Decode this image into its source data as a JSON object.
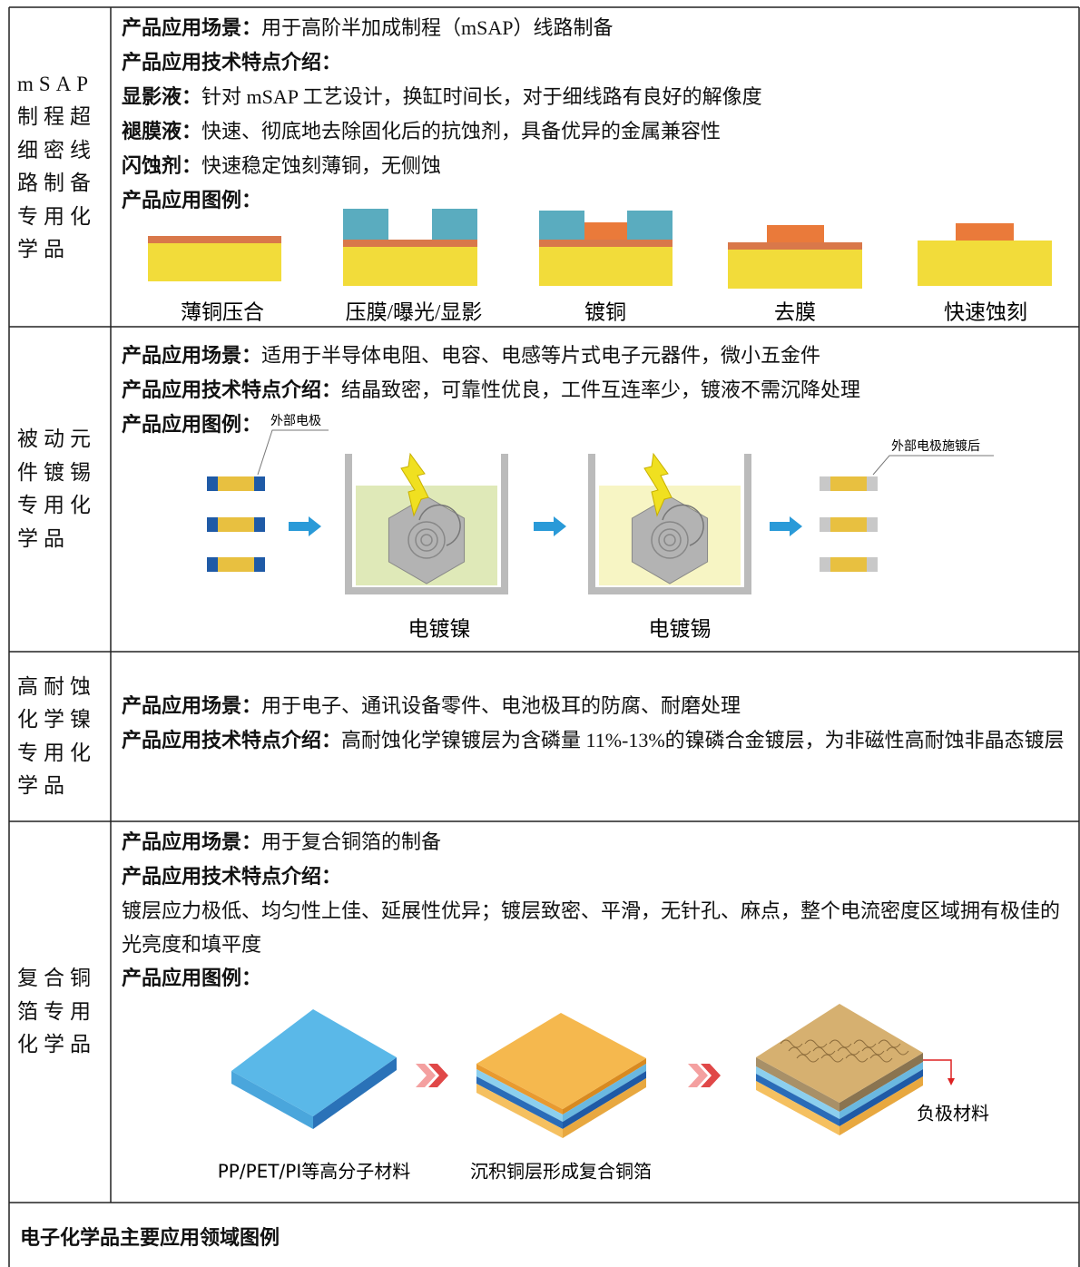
{
  "sections": [
    {
      "category": "mSAP制程超细密线路制备专用化学品",
      "lines": [
        {
          "label": "产品应用场景：",
          "text": "用于高阶半加成制程（mSAP）线路制备"
        },
        {
          "label": "产品应用技术特点介绍："
        },
        {
          "label": "显影液：",
          "text": "针对 mSAP 工艺设计，换缸时间长，对于细线路有良好的解像度"
        },
        {
          "label": "褪膜液：",
          "text": "快速、彻底地去除固化后的抗蚀剂，具备优异的金属兼容性"
        },
        {
          "label": "闪蚀剂：",
          "text": "快速稳定蚀刻薄铜，无侧蚀"
        },
        {
          "label": "产品应用图例："
        }
      ],
      "figure": {
        "captions": [
          "薄铜压合",
          "压膜/曝光/显影",
          "镀铜",
          "去膜",
          "快速蚀刻"
        ]
      }
    },
    {
      "category": "被动元件镀锡专用化学品",
      "lines": [
        {
          "label": "产品应用场景：",
          "text": "适用于半导体电阻、电容、电感等片式电子元器件，微小五金件"
        },
        {
          "label": "产品应用技术特点介绍：",
          "text": "结晶致密，可靠性优良，工件互连率少，镀液不需沉降处理"
        },
        {
          "label": "产品应用图例："
        }
      ],
      "figure": {
        "callouts": [
          "外部电极",
          "外部电极施镀后"
        ],
        "captions": [
          "电镀镍",
          "电镀锡"
        ]
      }
    },
    {
      "category": "高耐蚀化学镍专用化学品",
      "lines": [
        {
          "label": "产品应用场景：",
          "text": "用于电子、通讯设备零件、电池极耳的防腐、耐磨处理"
        },
        {
          "label": "产品应用技术特点介绍：",
          "text": "高耐蚀化学镍镀层为含磷量 11%-13%的镍磷合金镀层，为非磁性高耐蚀非晶态镀层"
        }
      ]
    },
    {
      "category": "复合铜箔专用化学品",
      "lines": [
        {
          "label": "产品应用场景：",
          "text": "用于复合铜箔的制备"
        },
        {
          "label": "产品应用技术特点介绍："
        },
        {
          "text": "镀层应力极低、均匀性上佳、延展性优异；镀层致密、平滑，无针孔、麻点，整个电流密度区域拥有极佳的光亮度和填平度"
        },
        {
          "label": "产品应用图例："
        }
      ],
      "figure": {
        "captions": [
          "PP/PET/PI等高分子材料",
          "沉积铜层形成复合铜箔"
        ],
        "callouts": [
          "负极材料"
        ]
      }
    }
  ],
  "footer": "电子化学品主要应用领域图例"
}
